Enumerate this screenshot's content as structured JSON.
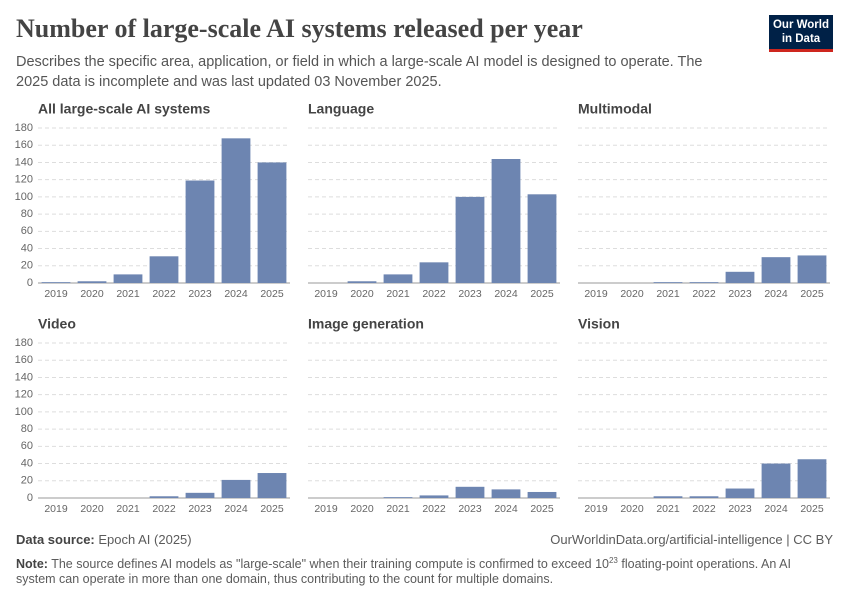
{
  "header": {
    "title": "Number of large-scale AI systems released per year",
    "subtitle": "Describes the specific area, application, or field in which a large-scale AI model is designed to operate. The 2025 data is incomplete and was last updated 03 November 2025.",
    "logo": [
      "Our World",
      "in Data"
    ]
  },
  "chart_data": [
    {
      "type": "bar",
      "title": "All large-scale AI systems",
      "categories": [
        "2019",
        "2020",
        "2021",
        "2022",
        "2023",
        "2024",
        "2025"
      ],
      "values": [
        1,
        2,
        10,
        31,
        119,
        168,
        140
      ],
      "color": "#6d85b1",
      "ylim": [
        0,
        180
      ],
      "yticks": [
        0,
        20,
        40,
        60,
        80,
        100,
        120,
        140,
        160,
        180
      ],
      "grid": true
    },
    {
      "type": "bar",
      "title": "Language",
      "categories": [
        "2019",
        "2020",
        "2021",
        "2022",
        "2023",
        "2024",
        "2025"
      ],
      "values": [
        0,
        2,
        10,
        24,
        100,
        144,
        103
      ],
      "color": "#6d85b1",
      "ylim": [
        0,
        180
      ],
      "yticks": [
        0,
        20,
        40,
        60,
        80,
        100,
        120,
        140,
        160,
        180
      ],
      "grid": true
    },
    {
      "type": "bar",
      "title": "Multimodal",
      "categories": [
        "2019",
        "2020",
        "2021",
        "2022",
        "2023",
        "2024",
        "2025"
      ],
      "values": [
        0,
        0,
        1,
        1,
        13,
        30,
        32
      ],
      "color": "#6d85b1",
      "ylim": [
        0,
        180
      ],
      "yticks": [
        0,
        20,
        40,
        60,
        80,
        100,
        120,
        140,
        160,
        180
      ],
      "grid": true
    },
    {
      "type": "bar",
      "title": "Video",
      "categories": [
        "2019",
        "2020",
        "2021",
        "2022",
        "2023",
        "2024",
        "2025"
      ],
      "values": [
        0,
        0,
        0,
        2,
        6,
        21,
        29
      ],
      "color": "#6d85b1",
      "ylim": [
        0,
        180
      ],
      "yticks": [
        0,
        20,
        40,
        60,
        80,
        100,
        120,
        140,
        160,
        180
      ],
      "grid": true
    },
    {
      "type": "bar",
      "title": "Image generation",
      "categories": [
        "2019",
        "2020",
        "2021",
        "2022",
        "2023",
        "2024",
        "2025"
      ],
      "values": [
        0,
        0,
        1,
        3,
        13,
        10,
        7
      ],
      "color": "#6d85b1",
      "ylim": [
        0,
        180
      ],
      "yticks": [
        0,
        20,
        40,
        60,
        80,
        100,
        120,
        140,
        160,
        180
      ],
      "grid": true
    },
    {
      "type": "bar",
      "title": "Vision",
      "categories": [
        "2019",
        "2020",
        "2021",
        "2022",
        "2023",
        "2024",
        "2025"
      ],
      "values": [
        0,
        0,
        2,
        2,
        11,
        40,
        45
      ],
      "color": "#6d85b1",
      "ylim": [
        0,
        180
      ],
      "yticks": [
        0,
        20,
        40,
        60,
        80,
        100,
        120,
        140,
        160,
        180
      ],
      "grid": true
    }
  ],
  "footer": {
    "source_label": "Data source:",
    "source": "Epoch AI (2025)",
    "url": "OurWorldinData.org/artificial-intelligence | CC BY",
    "note_label": "Note:",
    "note": [
      "The source defines AI models as \"large-scale\" when their training compute is confirmed to exceed 10",
      "23",
      " floating-point operations. An AI system can operate in more than one domain, thus contributing to the count for multiple domains."
    ]
  }
}
